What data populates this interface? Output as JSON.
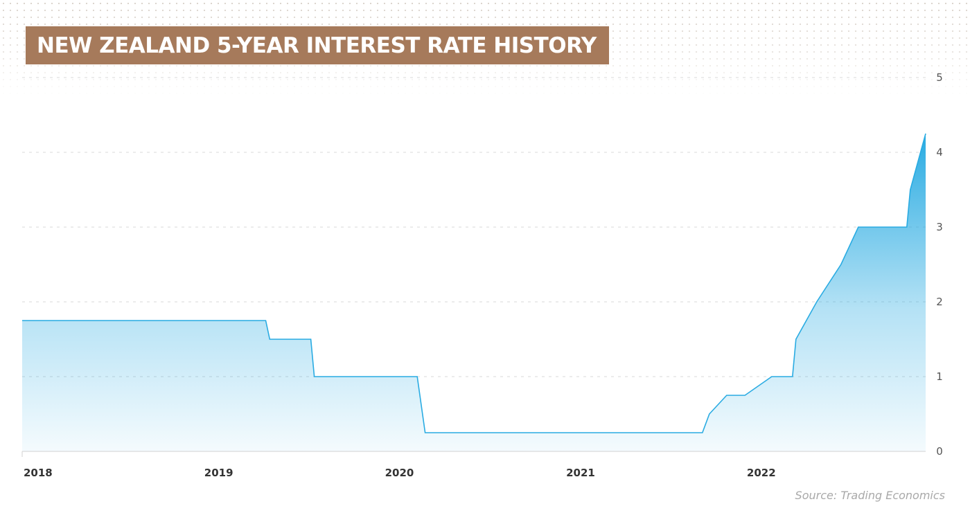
{
  "chart_data": {
    "type": "area",
    "title": "NEW ZEALAND 5-YEAR INTEREST RATE HISTORY",
    "xlabel": "",
    "ylabel": "",
    "x_ticks": [
      "2018",
      "2019",
      "2020",
      "2021",
      "2022"
    ],
    "y_ticks": [
      "0",
      "1",
      "2",
      "3",
      "4",
      "5"
    ],
    "ylim": [
      0,
      5
    ],
    "xlim": [
      "2018-01-01",
      "2022-12-31"
    ],
    "y_axis_side": "right",
    "grid": "horizontal dashed",
    "series": [
      {
        "x": [
          "2018-01-01",
          "2019-05-08",
          "2019-05-16",
          "2019-08-07",
          "2019-08-14",
          "2020-03-09",
          "2020-03-25",
          "2021-10-06",
          "2021-10-20",
          "2021-11-24",
          "2021-12-31",
          "2022-02-23",
          "2022-04-06",
          "2022-04-13",
          "2022-05-25",
          "2022-07-13",
          "2022-08-17",
          "2022-11-23",
          "2022-11-30",
          "2022-12-31"
        ],
        "y": [
          1.75,
          1.75,
          1.5,
          1.5,
          1.0,
          1.0,
          0.25,
          0.25,
          0.5,
          0.75,
          0.75,
          1.0,
          1.0,
          1.5,
          2.0,
          2.5,
          3.0,
          3.0,
          3.5,
          4.25
        ]
      }
    ],
    "colors": {
      "line": "#29abe2",
      "fill_top": "#29abe2",
      "fill_bottom": "#ffffff",
      "grid": "#d8d8d8",
      "axis": "#d0d0d0",
      "tick_text": "#333333",
      "y_tick_text": "#555555"
    }
  },
  "title_box_color": "#a67a5b",
  "source": "Source: Trading Economics"
}
